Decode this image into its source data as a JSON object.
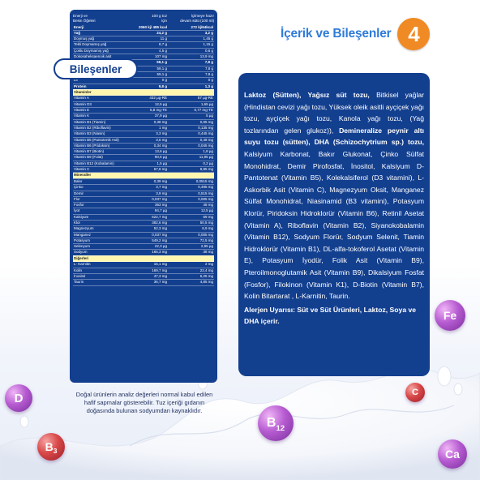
{
  "nutrition": {
    "header": {
      "col1_line1": "Enerji ve",
      "col1_line2": "Besin Öğeleri",
      "col2_line1": "100 g toz",
      "col2_line2": "için",
      "col3_line1": "İçilmeye hazır",
      "col3_line2": "devam sütü (100 ml)"
    },
    "rows": [
      {
        "type": "bold",
        "name": "Enerji",
        "v1": "2060 kj/ 485 kcal",
        "v2": "272 kj/64kcal"
      },
      {
        "type": "bold",
        "name": "Yağ",
        "v1": "24,2 g",
        "v2": "3,2 g"
      },
      {
        "type": "row",
        "name": "Doymuş yağ",
        "v1": "11 g",
        "v2": "1,45 g"
      },
      {
        "type": "row",
        "name": "Tekli Doymamış yağ",
        "v1": "8,7 g",
        "v2": "1,15 g"
      },
      {
        "type": "row",
        "name": "Çoklu Doymamış yağ",
        "v1": "4,5 g",
        "v2": "0,6 g"
      },
      {
        "type": "row",
        "name": "Dokosaheksaenoik asit",
        "v1": "107 mg",
        "v2": "13,9 mg"
      },
      {
        "type": "bold",
        "name": "Karbonhidrat",
        "v1": "59,1 g",
        "v2": "7,8 g"
      },
      {
        "type": "row",
        "name": "Şeker",
        "v1": "59,1 g",
        "v2": "7,8 g"
      },
      {
        "type": "row",
        "name": "Laktoz",
        "v1": "59,1 g",
        "v2": "7,8 g"
      },
      {
        "type": "row",
        "name": "Lif",
        "v1": "0 g",
        "v2": "0 g"
      },
      {
        "type": "bold",
        "name": "Protein",
        "v1": "9,8 g",
        "v2": "1,3 g"
      },
      {
        "type": "section",
        "name": "Vitaminler",
        "v1": "",
        "v2": ""
      },
      {
        "type": "row",
        "name": "Vitamin A",
        "v1": "432 µg-RE",
        "v2": "57 µg-RE"
      },
      {
        "type": "row",
        "name": "Vitamin D3",
        "v1": "12,5 µg",
        "v2": "1,65 µg"
      },
      {
        "type": "row",
        "name": "Vitamin E",
        "v1": "5,8 mg-TE",
        "v2": "0,77 mg-TE"
      },
      {
        "type": "row",
        "name": "Vitamin K",
        "v1": "37,9 µg",
        "v2": "5 µg"
      },
      {
        "type": "row",
        "name": "Vitamin B1 (Tiamin)",
        "v1": "0,38 mg",
        "v2": "0,05 mg"
      },
      {
        "type": "row",
        "name": "Vitamin B2 (Riboflavin)",
        "v1": "1 mg",
        "v2": "0,135 mg"
      },
      {
        "type": "row",
        "name": "Vitamin B3 (Niasin)",
        "v1": "3,3 mg",
        "v2": "0,445 mg"
      },
      {
        "type": "row",
        "name": "Vitamin B5 (Pantotenik Asit)",
        "v1": "3,6 mg",
        "v2": "0,48 mg"
      },
      {
        "type": "row",
        "name": "Vitamin B6 (Pridoksin)",
        "v1": "0,34 mg",
        "v2": "0,045 mg"
      },
      {
        "type": "row",
        "name": "Vitamin B7 (Biotin)",
        "v1": "13,6 µg",
        "v2": "1,8 µg"
      },
      {
        "type": "row",
        "name": "Vitamin B9 (Folat)",
        "v1": "90,5 µg",
        "v2": "11,95 µg"
      },
      {
        "type": "row",
        "name": "Vitamin B12 (Kobalamin)",
        "v1": "1,5 µg",
        "v2": "0,2 µg"
      },
      {
        "type": "row",
        "name": "Vitamin C",
        "v1": "67,8 mg",
        "v2": "8,95 mg"
      },
      {
        "type": "section",
        "name": "Mineraller",
        "v1": "",
        "v2": ""
      },
      {
        "type": "row",
        "name": "Bakır",
        "v1": "0,39 mg",
        "v2": "0,0515 mg"
      },
      {
        "type": "row",
        "name": "Çinko",
        "v1": "3,7 mg",
        "v2": "0,495 mg"
      },
      {
        "type": "row",
        "name": "Demir",
        "v1": "3,9 mg",
        "v2": "0,515 mg"
      },
      {
        "type": "row",
        "name": "Flor",
        "v1": "0,037 mg",
        "v2": "0,005 mg"
      },
      {
        "type": "row",
        "name": "Fosfor",
        "v1": "363 mg",
        "v2": "48 mg"
      },
      {
        "type": "row",
        "name": "İyot",
        "v1": "94,7 µg",
        "v2": "12,5 µg"
      },
      {
        "type": "row",
        "name": "Kalsiyum",
        "v1": "522,7 mg",
        "v2": "69 mg"
      },
      {
        "type": "row",
        "name": "Klor",
        "v1": "382,6 mg",
        "v2": "50,5 mg"
      },
      {
        "type": "row",
        "name": "Magnezyum",
        "v1": "52,3 mg",
        "v2": "6,9 mg"
      },
      {
        "type": "row",
        "name": "Manganez",
        "v1": "0,037 mg",
        "v2": "0,005 mg"
      },
      {
        "type": "row",
        "name": "Potasyum",
        "v1": "549,2 mg",
        "v2": "72,5 mg"
      },
      {
        "type": "row",
        "name": "Selenyum",
        "v1": "22,3 µg",
        "v2": "2,95 µg"
      },
      {
        "type": "row",
        "name": "Sodyum",
        "v1": "166,3 mg",
        "v2": "38 mg"
      },
      {
        "type": "section",
        "name": "Diğerleri",
        "v1": "",
        "v2": ""
      },
      {
        "type": "row",
        "name": "L- Karnitin",
        "v1": "15,1 mg",
        "v2": "2 mg"
      },
      {
        "type": "row",
        "name": "Kolin",
        "v1": "169,7 mg",
        "v2": "22,4 mg"
      },
      {
        "type": "row",
        "name": "İnositol",
        "v1": "47,3 mg",
        "v2": "6,25 mg"
      },
      {
        "type": "row",
        "name": "Taurin",
        "v1": "36,7 mg",
        "v2": "4,85 mg"
      }
    ],
    "note": "Doğal ürünlerin analiz değerleri normal kabul edilen hafif sapmalar gösterebilir. Tuz içeriği gıdanın doğasında bulunan sodyumdan kaynaklıdır."
  },
  "header": {
    "title": "İçerik ve Bileşenler",
    "step_number": "4"
  },
  "ingredients": {
    "title": "Bileşenler",
    "segments": [
      {
        "bold": true,
        "text": "Laktoz (Sütten), Yağsız süt tozu, "
      },
      {
        "bold": false,
        "text": "Bitkisel yağlar (Hindistan cevizi yağı tozu, Yüksek oleik asitli ayçiçek yağı tozu, ayçiçek yağı tozu, Kanola yağı tozu, (Yağ tozlarından gelen glukoz)), "
      },
      {
        "bold": true,
        "text": "Demineralize peynir altı suyu tozu (sütten), DHA (Schizochytrium sp.) tozu, "
      },
      {
        "bold": false,
        "text": "Kalsiyum Karbonat, Bakır Glukonat, Çinko Sülfat Monohidrat, Demir Pirofosfat, İnositol, Kalsiyum D-Pantotenat (Vitamin B5), Kolekalsiferol (D3 vitamini), L-Askorbik Asit (Vitamin C), Magnezyum Oksit, Manganez Sülfat Monohidrat, Niasinamid (B3 vitamini), Potasyum Klorür, Piridoksin Hidroklorür (Vitamin B6), Retinil Asetat (Vitamin A), Riboflavin (Vitamin B2), Siyanokobalamin (Vitamin B12), Sodyum Florür, Sodyum Selenit, Tiamin Hidroklorür (Vitamin B1), DL-alfa-tokoferol Asetat (Vitamin E), Potasyum İyodür, Folik Asit (Vitamin B9), Pteroilmonoglutamik Asit (Vitamin B9), Dikalsiyum Fosfat (Fosfor), Filokinon (Vitamin K1), D-Biotin (Vitamin B7), Kolin Bitartarat , L-Karnitin, Taurin."
      }
    ],
    "allergen": "Alerjen Uyarısı: Süt ve Süt Ürünleri, Laktoz, Soya ve DHA içerir."
  },
  "bubbles": [
    {
      "label": "D",
      "sub": "",
      "color": "purple"
    },
    {
      "label": "B",
      "sub": "3",
      "color": "red"
    },
    {
      "label": "B",
      "sub": "12",
      "color": "purple"
    },
    {
      "label": "Fe",
      "sub": "",
      "color": "purple"
    },
    {
      "label": "C",
      "sub": "",
      "color": "red"
    },
    {
      "label": "Ca",
      "sub": "",
      "color": "purple"
    }
  ],
  "colors": {
    "panel_blue": "#133f8f",
    "title_blue": "#2f7bd8",
    "badge_orange": "#f08a24",
    "section_yellow": "#fff7b0"
  }
}
